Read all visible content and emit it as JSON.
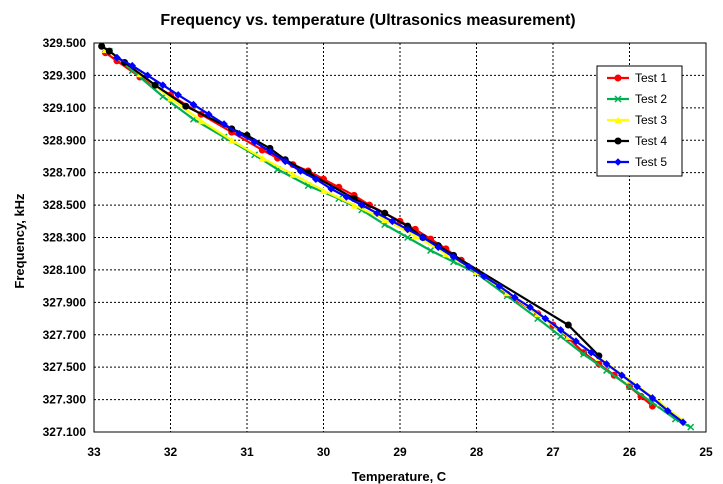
{
  "chart_data": {
    "type": "line",
    "title": "Frequency  vs. temperature (Ultrasonics measurement)",
    "xlabel": "Temperature, C",
    "ylabel": "Frequency, kHz",
    "xlim": [
      33,
      25
    ],
    "x_reversed": true,
    "ylim": [
      327.1,
      329.5
    ],
    "x_ticks": [
      33,
      32,
      31,
      30,
      29,
      28,
      27,
      26,
      25
    ],
    "y_ticks": [
      "327.100",
      "327.300",
      "327.500",
      "327.700",
      "327.900",
      "328.100",
      "328.300",
      "328.500",
      "328.700",
      "328.900",
      "329.100",
      "329.300",
      "329.500"
    ],
    "grid": "dashed",
    "legend_position": "upper-right",
    "series": [
      {
        "name": "Test 1",
        "color": "#ff0000",
        "marker": "circle",
        "x": [
          32.85,
          32.7,
          32.4,
          32.0,
          31.6,
          31.2,
          30.8,
          30.6,
          30.4,
          30.2,
          30.0,
          29.8,
          29.6,
          29.4,
          29.2,
          29.0,
          28.8,
          28.6,
          28.4,
          28.2,
          28.0,
          27.6,
          27.2,
          27.0,
          26.8,
          26.6,
          26.4,
          26.2,
          26.0,
          25.85,
          25.7
        ],
        "y": [
          329.44,
          329.39,
          329.29,
          329.18,
          329.06,
          328.95,
          328.84,
          328.79,
          328.75,
          328.71,
          328.66,
          328.61,
          328.56,
          328.5,
          328.45,
          328.4,
          328.35,
          328.29,
          328.23,
          328.16,
          328.09,
          327.95,
          327.83,
          327.76,
          327.68,
          327.59,
          327.52,
          327.45,
          327.38,
          327.32,
          327.26
        ]
      },
      {
        "name": "Test 2",
        "color": "#00b050",
        "marker": "x",
        "x": [
          32.8,
          32.5,
          32.1,
          31.7,
          31.3,
          30.9,
          30.6,
          30.2,
          29.8,
          29.5,
          29.2,
          28.9,
          28.6,
          28.3,
          28.0,
          27.6,
          27.2,
          26.9,
          26.6,
          26.3,
          26.0,
          25.7,
          25.4,
          25.2
        ],
        "y": [
          329.45,
          329.33,
          329.17,
          329.03,
          328.92,
          328.81,
          328.72,
          328.62,
          328.54,
          328.47,
          328.38,
          328.3,
          328.22,
          328.15,
          328.08,
          327.94,
          327.8,
          327.69,
          327.58,
          327.48,
          327.38,
          327.28,
          327.18,
          327.13
        ]
      },
      {
        "name": "Test 3",
        "color": "#ffff00",
        "marker": "triangle",
        "x": [
          32.85,
          32.4,
          32.0,
          31.6,
          31.2,
          30.8,
          30.4,
          30.0,
          29.6,
          29.2,
          28.8,
          28.4,
          28.0,
          27.6,
          27.2,
          26.8,
          26.4,
          26.0,
          25.6,
          25.3
        ],
        "y": [
          329.46,
          329.31,
          329.16,
          329.02,
          328.9,
          328.79,
          328.69,
          328.59,
          328.5,
          328.41,
          328.31,
          328.2,
          328.09,
          327.96,
          327.83,
          327.69,
          327.56,
          327.42,
          327.28,
          327.17
        ]
      },
      {
        "name": "Test 4",
        "color": "#000000",
        "marker": "circle",
        "x": [
          32.9,
          32.8,
          32.6,
          32.2,
          31.8,
          31.2,
          31.0,
          30.7,
          30.5,
          30.2,
          29.6,
          29.2,
          28.9,
          28.7,
          28.5,
          28.3,
          26.8,
          26.4
        ],
        "y": [
          329.48,
          329.45,
          329.38,
          329.24,
          329.11,
          328.97,
          328.93,
          328.85,
          328.78,
          328.7,
          328.54,
          328.45,
          328.37,
          328.3,
          328.25,
          328.19,
          327.76,
          327.57
        ]
      },
      {
        "name": "Test 5",
        "color": "#0000ff",
        "marker": "diamond",
        "x": [
          32.7,
          32.5,
          32.3,
          32.1,
          31.9,
          31.7,
          31.5,
          31.3,
          31.1,
          30.9,
          30.7,
          30.5,
          30.3,
          30.1,
          29.9,
          29.7,
          29.5,
          29.3,
          29.1,
          28.9,
          28.7,
          28.5,
          28.3,
          28.1,
          27.9,
          27.7,
          27.5,
          27.3,
          27.1,
          26.9,
          26.7,
          26.5,
          26.3,
          26.1,
          25.9,
          25.7,
          25.5,
          25.3
        ],
        "y": [
          329.41,
          329.36,
          329.3,
          329.24,
          329.18,
          329.12,
          329.06,
          329.0,
          328.94,
          328.89,
          328.83,
          328.77,
          328.71,
          328.66,
          328.6,
          328.55,
          328.5,
          328.45,
          328.4,
          328.35,
          328.3,
          328.24,
          328.18,
          328.12,
          328.06,
          328.0,
          327.93,
          327.87,
          327.8,
          327.73,
          327.66,
          327.59,
          327.52,
          327.45,
          327.38,
          327.31,
          327.23,
          327.16
        ]
      }
    ]
  }
}
